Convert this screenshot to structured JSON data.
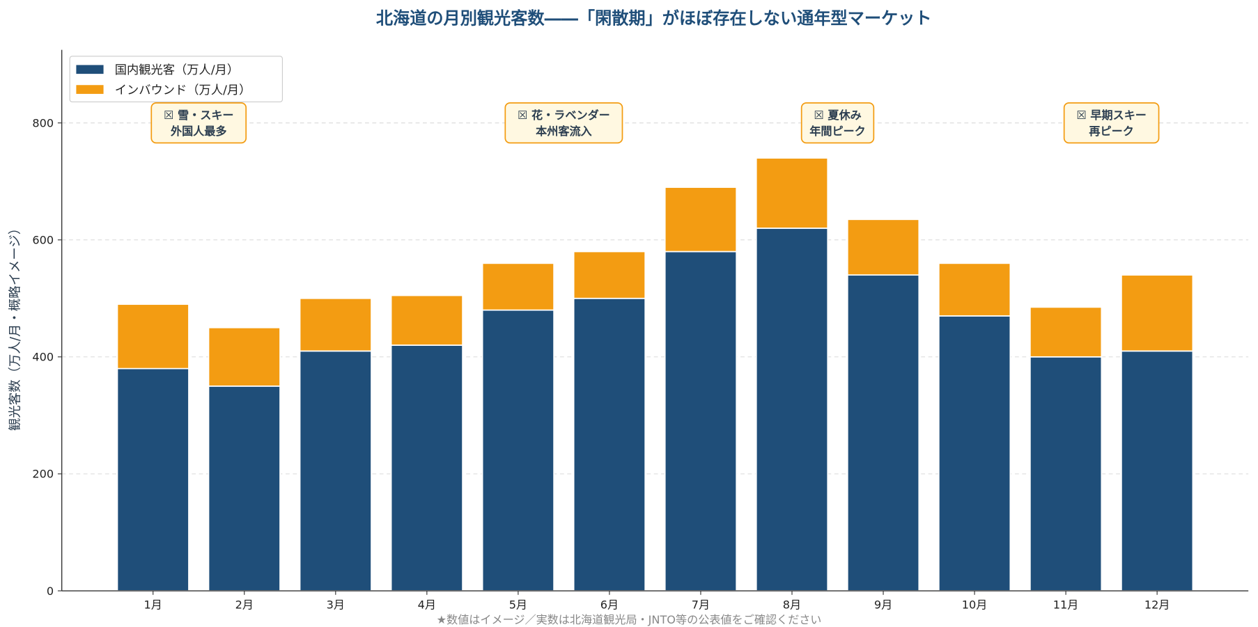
{
  "chart_data": {
    "type": "bar",
    "stacked": true,
    "title": "北海道の月別観光客数――「閑散期」がほぼ存在しない通年型マーケット",
    "xlabel": "",
    "ylabel": "観光客数（万人/月・概略イメージ）",
    "ylim": [
      0,
      925
    ],
    "yticks": [
      0,
      200,
      400,
      600,
      800
    ],
    "grid": "y dashed",
    "legend_position": "top-left",
    "categories": [
      "1月",
      "2月",
      "3月",
      "4月",
      "5月",
      "6月",
      "7月",
      "8月",
      "9月",
      "10月",
      "11月",
      "12月"
    ],
    "series": [
      {
        "name": "国内観光客（万人/月）",
        "color": "#1f4e79",
        "values": [
          380,
          350,
          410,
          420,
          480,
          500,
          580,
          620,
          540,
          470,
          400,
          410
        ]
      },
      {
        "name": "インバウンド（万人/月）",
        "color": "#f39c12",
        "values": [
          110,
          100,
          90,
          85,
          80,
          80,
          110,
          120,
          95,
          90,
          85,
          130
        ]
      }
    ],
    "annotations": [
      {
        "x": 0.5,
        "y": 800,
        "lines": [
          "☒ 雪・スキー",
          "外国人最多"
        ]
      },
      {
        "x": 4.5,
        "y": 800,
        "lines": [
          "☒ 花・ラベンダー",
          "本州客流入"
        ]
      },
      {
        "x": 7.5,
        "y": 800,
        "lines": [
          "☒ 夏休み",
          "年間ピーク"
        ]
      },
      {
        "x": 10.5,
        "y": 800,
        "lines": [
          "☒ 早期スキー",
          "再ピーク"
        ]
      }
    ],
    "footnote": "★数値はイメージ／実数は北海道観光局・JNTO等の公表値をご確認ください"
  }
}
